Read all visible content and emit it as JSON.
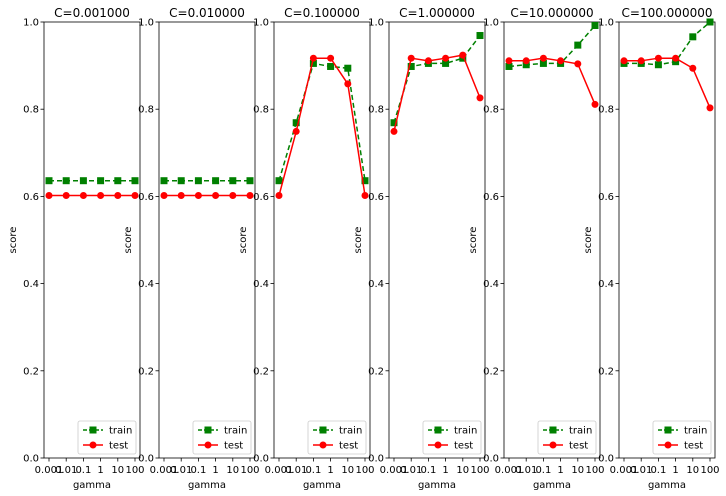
{
  "chart_data": [
    {
      "type": "line",
      "title": "C=0.001000",
      "xlabel": "gamma",
      "ylabel": "score",
      "ylim": [
        0,
        1.0
      ],
      "yticks": [
        "0.0",
        "0.2",
        "0.4",
        "0.6",
        "0.8",
        "1.0"
      ],
      "categories": [
        "0.001",
        "0.01",
        "0.1",
        "1",
        "10",
        "100"
      ],
      "legend_position": "lower-right",
      "series": [
        {
          "name": "train",
          "color": "#008000",
          "style": "dashed",
          "marker": "square",
          "values": [
            0.636,
            0.636,
            0.636,
            0.636,
            0.636,
            0.636
          ]
        },
        {
          "name": "test",
          "color": "#ff0000",
          "style": "solid",
          "marker": "circle",
          "values": [
            0.602,
            0.602,
            0.602,
            0.602,
            0.602,
            0.602
          ]
        }
      ]
    },
    {
      "type": "line",
      "title": "C=0.010000",
      "xlabel": "gamma",
      "ylabel": "score",
      "ylim": [
        0,
        1.0
      ],
      "yticks": [
        "0.0",
        "0.2",
        "0.4",
        "0.6",
        "0.8",
        "1.0"
      ],
      "categories": [
        "0.001",
        "0.01",
        "0.1",
        "1",
        "10",
        "100"
      ],
      "legend_position": "lower-right",
      "series": [
        {
          "name": "train",
          "color": "#008000",
          "style": "dashed",
          "marker": "square",
          "values": [
            0.636,
            0.636,
            0.636,
            0.636,
            0.636,
            0.636
          ]
        },
        {
          "name": "test",
          "color": "#ff0000",
          "style": "solid",
          "marker": "circle",
          "values": [
            0.602,
            0.602,
            0.602,
            0.602,
            0.602,
            0.602
          ]
        }
      ]
    },
    {
      "type": "line",
      "title": "C=0.100000",
      "xlabel": "gamma",
      "ylabel": "score",
      "ylim": [
        0,
        1.0
      ],
      "yticks": [
        "0.0",
        "0.2",
        "0.4",
        "0.6",
        "0.8",
        "1.0"
      ],
      "categories": [
        "0.001",
        "0.01",
        "0.1",
        "1",
        "10",
        "100"
      ],
      "legend_position": "lower-right",
      "series": [
        {
          "name": "train",
          "color": "#008000",
          "style": "dashed",
          "marker": "square",
          "values": [
            0.636,
            0.769,
            0.905,
            0.898,
            0.894,
            0.636
          ]
        },
        {
          "name": "test",
          "color": "#ff0000",
          "style": "solid",
          "marker": "circle",
          "values": [
            0.602,
            0.749,
            0.917,
            0.917,
            0.858,
            0.602
          ]
        }
      ]
    },
    {
      "type": "line",
      "title": "C=1.000000",
      "xlabel": "gamma",
      "ylabel": "score",
      "ylim": [
        0,
        1.0
      ],
      "yticks": [
        "0.0",
        "0.2",
        "0.4",
        "0.6",
        "0.8",
        "1.0"
      ],
      "categories": [
        "0.001",
        "0.01",
        "0.1",
        "1",
        "10",
        "100"
      ],
      "legend_position": "lower-right",
      "series": [
        {
          "name": "train",
          "color": "#008000",
          "style": "dashed",
          "marker": "square",
          "values": [
            0.769,
            0.898,
            0.905,
            0.905,
            0.917,
            0.969
          ]
        },
        {
          "name": "test",
          "color": "#ff0000",
          "style": "solid",
          "marker": "circle",
          "values": [
            0.749,
            0.917,
            0.911,
            0.917,
            0.924,
            0.826
          ]
        }
      ]
    },
    {
      "type": "line",
      "title": "C=10.000000",
      "xlabel": "gamma",
      "ylabel": "score",
      "ylim": [
        0,
        1.0
      ],
      "yticks": [
        "0.0",
        "0.2",
        "0.4",
        "0.6",
        "0.8",
        "1.0"
      ],
      "categories": [
        "0.001",
        "0.01",
        "0.1",
        "1",
        "10",
        "100"
      ],
      "legend_position": "lower-right",
      "series": [
        {
          "name": "train",
          "color": "#008000",
          "style": "dashed",
          "marker": "square",
          "values": [
            0.898,
            0.902,
            0.905,
            0.905,
            0.947,
            0.992
          ]
        },
        {
          "name": "test",
          "color": "#ff0000",
          "style": "solid",
          "marker": "circle",
          "values": [
            0.911,
            0.911,
            0.917,
            0.911,
            0.904,
            0.811
          ]
        }
      ]
    },
    {
      "type": "line",
      "title": "C=100.000000",
      "xlabel": "gamma",
      "ylabel": "score",
      "ylim": [
        0,
        1.0
      ],
      "yticks": [
        "0.0",
        "0.2",
        "0.4",
        "0.6",
        "0.8",
        "1.0"
      ],
      "categories": [
        "0.001",
        "0.01",
        "0.1",
        "1",
        "10",
        "100"
      ],
      "legend_position": "lower-right",
      "series": [
        {
          "name": "train",
          "color": "#008000",
          "style": "dashed",
          "marker": "square",
          "values": [
            0.905,
            0.905,
            0.902,
            0.909,
            0.966,
            1.0
          ]
        },
        {
          "name": "test",
          "color": "#ff0000",
          "style": "solid",
          "marker": "circle",
          "values": [
            0.911,
            0.911,
            0.917,
            0.917,
            0.894,
            0.803
          ]
        }
      ]
    }
  ]
}
